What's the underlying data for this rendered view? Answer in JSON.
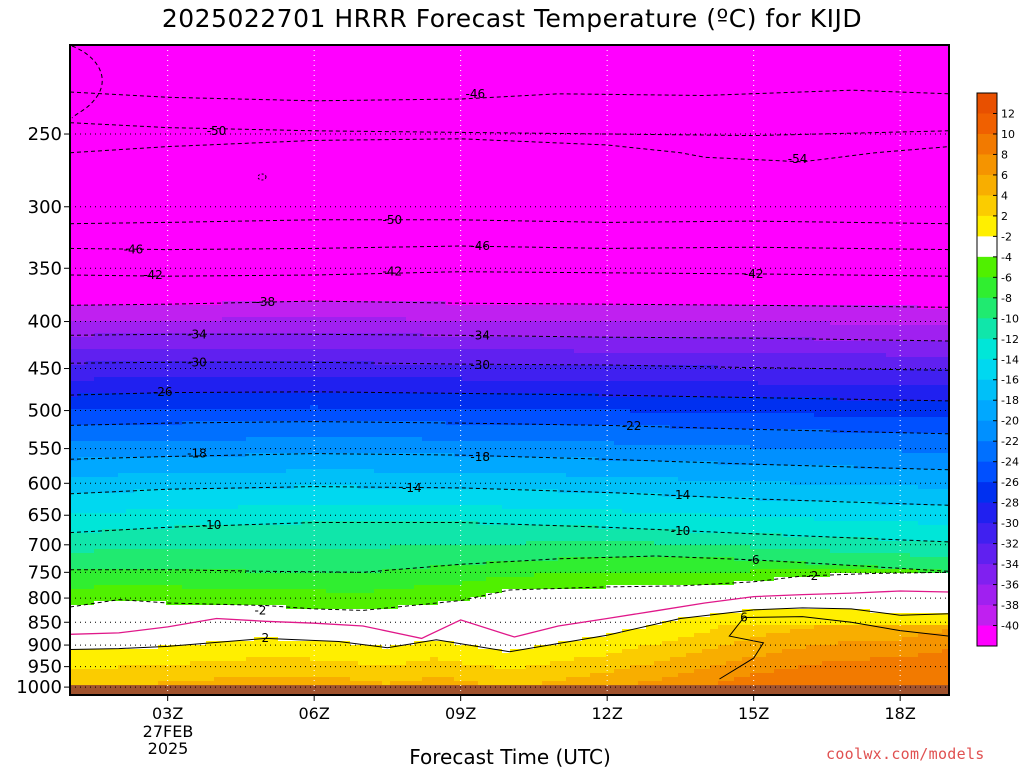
{
  "chart_data": {
    "type": "filled-contour",
    "title": "2025022701 HRRR Forecast Temperature (ºC) for KIJD",
    "xlabel": "Forecast Time (UTC)",
    "ylabel": "",
    "x_ticks": [
      "03Z",
      "06Z",
      "09Z",
      "12Z",
      "15Z",
      "18Z"
    ],
    "x_date_line1": "27FEB",
    "x_date_line2": "2025",
    "xlim_hours_utc": [
      1,
      19
    ],
    "y_ticks": [
      250,
      300,
      350,
      400,
      450,
      500,
      550,
      600,
      650,
      700,
      750,
      800,
      850,
      900,
      950,
      1000
    ],
    "ylim_hpa": [
      1020,
      200
    ],
    "y_log_scale": true,
    "grid": "dotted",
    "colorbar_labels": [
      12,
      10,
      8,
      6,
      4,
      2,
      -2,
      -4,
      -6,
      -8,
      -10,
      -12,
      -14,
      -16,
      -18,
      -20,
      -22,
      -24,
      -26,
      -28,
      -30,
      -32,
      -34,
      -36,
      -38,
      -40
    ],
    "colorbar_colors": [
      "#f06000",
      "#f27a00",
      "#f59400",
      "#f8ae00",
      "#fbcc00",
      "#ffef00",
      "#ffffff",
      "#50f000",
      "#30ee30",
      "#20ea70",
      "#10e6aa",
      "#00e6d8",
      "#00d8f0",
      "#00c0f8",
      "#00a8ff",
      "#0090ff",
      "#0070ff",
      "#0050ff",
      "#0030f0",
      "#2020f0",
      "#4020f0",
      "#6020f0",
      "#8020f0",
      "#a020f0",
      "#c020f0",
      "#ff00ff"
    ],
    "isotherms": [
      {
        "value": -54,
        "label": "54",
        "points": [
          [
            1,
            262
          ],
          [
            3,
            258
          ],
          [
            6,
            254
          ],
          [
            9,
            253
          ],
          [
            12,
            257
          ],
          [
            13.5,
            262
          ],
          [
            14,
            265
          ],
          [
            16,
            268
          ],
          [
            17.5,
            262
          ],
          [
            19,
            258
          ]
        ]
      },
      {
        "value": -50,
        "label": "50",
        "points": [
          [
            1,
            243
          ],
          [
            3,
            246
          ],
          [
            6,
            248
          ],
          [
            9,
            249
          ],
          [
            12,
            250
          ],
          [
            15,
            251
          ],
          [
            19,
            248
          ]
        ]
      },
      {
        "value": -46,
        "label": "46",
        "points": [
          [
            1,
            225
          ],
          [
            3,
            228
          ],
          [
            6,
            230
          ],
          [
            9,
            229
          ],
          [
            11,
            226
          ],
          [
            14,
            227
          ],
          [
            17,
            224
          ],
          [
            19,
            226
          ]
        ]
      },
      {
        "value": -50,
        "label": "50",
        "points": [
          [
            1,
            313
          ],
          [
            3,
            312
          ],
          [
            6,
            310
          ],
          [
            9,
            310
          ],
          [
            12,
            312
          ],
          [
            15,
            311
          ],
          [
            19,
            313
          ]
        ]
      },
      {
        "value": -46,
        "label": "46",
        "points": [
          [
            1,
            333
          ],
          [
            3,
            334
          ],
          [
            6,
            333
          ],
          [
            9,
            331
          ],
          [
            12,
            333
          ],
          [
            15,
            332
          ],
          [
            19,
            334
          ]
        ]
      },
      {
        "value": -42,
        "label": "42",
        "points": [
          [
            1,
            356
          ],
          [
            3,
            357
          ],
          [
            6,
            356
          ],
          [
            9,
            353
          ],
          [
            12,
            354
          ],
          [
            15,
            355
          ],
          [
            19,
            357
          ]
        ]
      },
      {
        "value": -38,
        "label": "38",
        "points": [
          [
            1,
            384
          ],
          [
            3,
            383
          ],
          [
            6,
            380
          ],
          [
            9,
            382
          ],
          [
            12,
            383
          ],
          [
            15,
            384
          ],
          [
            19,
            386
          ]
        ]
      },
      {
        "value": -34,
        "label": "34",
        "points": [
          [
            1,
            414
          ],
          [
            3,
            413
          ],
          [
            6,
            413
          ],
          [
            9,
            414
          ],
          [
            12,
            416
          ],
          [
            15,
            417
          ],
          [
            19,
            420
          ]
        ]
      },
      {
        "value": -30,
        "label": "30",
        "points": [
          [
            1,
            444
          ],
          [
            3,
            443
          ],
          [
            6,
            443
          ],
          [
            9,
            445
          ],
          [
            12,
            446
          ],
          [
            15,
            449
          ],
          [
            19,
            452
          ]
        ]
      },
      {
        "value": -26,
        "label": "26",
        "points": [
          [
            1,
            481
          ],
          [
            3,
            478
          ],
          [
            6,
            477
          ],
          [
            9,
            479
          ],
          [
            12,
            481
          ],
          [
            15,
            484
          ],
          [
            19,
            488
          ]
        ]
      },
      {
        "value": -22,
        "label": "22",
        "points": [
          [
            1,
            519
          ],
          [
            3,
            516
          ],
          [
            6,
            514
          ],
          [
            9,
            516
          ],
          [
            12,
            519
          ],
          [
            15,
            524
          ],
          [
            19,
            530
          ]
        ]
      },
      {
        "value": -18,
        "label": "18",
        "points": [
          [
            1,
            565
          ],
          [
            3,
            561
          ],
          [
            6,
            557
          ],
          [
            9,
            559
          ],
          [
            12,
            565
          ],
          [
            15,
            572
          ],
          [
            19,
            580
          ]
        ]
      },
      {
        "value": -14,
        "label": "14",
        "points": [
          [
            1,
            616
          ],
          [
            3,
            609
          ],
          [
            6,
            605
          ],
          [
            9,
            607
          ],
          [
            12,
            614
          ],
          [
            15,
            624
          ],
          [
            19,
            634
          ]
        ]
      },
      {
        "value": -10,
        "label": "10",
        "points": [
          [
            1,
            679
          ],
          [
            3,
            670
          ],
          [
            6,
            662
          ],
          [
            9,
            662
          ],
          [
            12,
            670
          ],
          [
            15,
            681
          ],
          [
            19,
            695
          ]
        ]
      },
      {
        "value": -6,
        "label": "6",
        "points": [
          [
            1,
            745
          ],
          [
            3,
            745
          ],
          [
            5,
            748
          ],
          [
            7,
            750
          ],
          [
            9,
            735
          ],
          [
            11,
            725
          ],
          [
            13,
            720
          ],
          [
            15,
            727
          ],
          [
            17,
            737
          ],
          [
            19,
            748
          ]
        ]
      },
      {
        "value": -2,
        "label": "2",
        "points": [
          [
            1,
            818
          ],
          [
            2,
            803
          ],
          [
            3,
            810
          ],
          [
            5,
            815
          ],
          [
            6,
            822
          ],
          [
            7,
            825
          ],
          [
            9,
            805
          ],
          [
            10,
            784
          ],
          [
            12,
            778
          ],
          [
            13.5,
            776
          ],
          [
            15,
            768
          ],
          [
            16,
            757
          ],
          [
            17.5,
            752
          ],
          [
            19,
            750
          ]
        ]
      },
      {
        "value": 2,
        "label": "2",
        "points": [
          [
            1,
            910
          ],
          [
            2,
            908
          ],
          [
            3,
            903
          ],
          [
            5,
            885
          ],
          [
            6.5,
            892
          ],
          [
            7.5,
            906
          ],
          [
            8.5,
            888
          ],
          [
            10,
            915
          ],
          [
            12,
            878
          ],
          [
            13.5,
            842
          ],
          [
            15,
            824
          ],
          [
            16,
            820
          ],
          [
            17,
            822
          ],
          [
            18,
            835
          ],
          [
            19,
            832
          ]
        ]
      },
      {
        "value": 6,
        "label": "6",
        "points": [
          [
            14.3,
            980
          ],
          [
            15,
            930
          ],
          [
            15.2,
            895
          ],
          [
            14.5,
            880
          ],
          [
            14.8,
            840
          ],
          [
            16,
            838
          ],
          [
            17,
            850
          ],
          [
            18,
            868
          ],
          [
            19,
            880
          ]
        ]
      }
    ],
    "freezing_line_points": [
      [
        1,
        876
      ],
      [
        2,
        873
      ],
      [
        3,
        860
      ],
      [
        4,
        842
      ],
      [
        5,
        848
      ],
      [
        6,
        852
      ],
      [
        7,
        858
      ],
      [
        8.2,
        885
      ],
      [
        9,
        845
      ],
      [
        10.1,
        882
      ],
      [
        11,
        858
      ],
      [
        12,
        842
      ],
      [
        13,
        826
      ],
      [
        14,
        810
      ],
      [
        15,
        797
      ],
      [
        16,
        793
      ],
      [
        17,
        790
      ],
      [
        18,
        786
      ],
      [
        19,
        788
      ]
    ],
    "inline_labels": [
      {
        "text": "46",
        "x": 9.3,
        "y": 226
      },
      {
        "text": "50",
        "x": 4.0,
        "y": 248
      },
      {
        "text": "54",
        "x": 15.9,
        "y": 266
      },
      {
        "text": "46",
        "x": 2.3,
        "y": 334
      },
      {
        "text": "42",
        "x": 2.7,
        "y": 356
      },
      {
        "text": "50",
        "x": 7.6,
        "y": 310
      },
      {
        "text": "46",
        "x": 9.4,
        "y": 331
      },
      {
        "text": "42",
        "x": 7.6,
        "y": 353
      },
      {
        "text": "42",
        "x": 15.0,
        "y": 355
      },
      {
        "text": "38",
        "x": 5.0,
        "y": 381
      },
      {
        "text": "34",
        "x": 3.6,
        "y": 413
      },
      {
        "text": "34",
        "x": 9.4,
        "y": 414
      },
      {
        "text": "30",
        "x": 3.6,
        "y": 443
      },
      {
        "text": "30",
        "x": 9.4,
        "y": 446
      },
      {
        "text": "26",
        "x": 2.9,
        "y": 477
      },
      {
        "text": "22",
        "x": 12.5,
        "y": 520
      },
      {
        "text": "18",
        "x": 3.6,
        "y": 557
      },
      {
        "text": "18",
        "x": 9.4,
        "y": 562
      },
      {
        "text": "14",
        "x": 8.0,
        "y": 607
      },
      {
        "text": "14",
        "x": 13.5,
        "y": 618
      },
      {
        "text": "10",
        "x": 3.9,
        "y": 666
      },
      {
        "text": "10",
        "x": 13.5,
        "y": 676
      },
      {
        "text": "6",
        "x": 15.0,
        "y": 727
      },
      {
        "text": "2",
        "x": 16.2,
        "y": 757
      },
      {
        "text": "2",
        "x": 4.9,
        "y": 825
      },
      {
        "text": "2",
        "x": 5.0,
        "y": 884
      },
      {
        "text": "6",
        "x": 14.8,
        "y": 840
      }
    ]
  },
  "credit": "coolwx.com/models"
}
